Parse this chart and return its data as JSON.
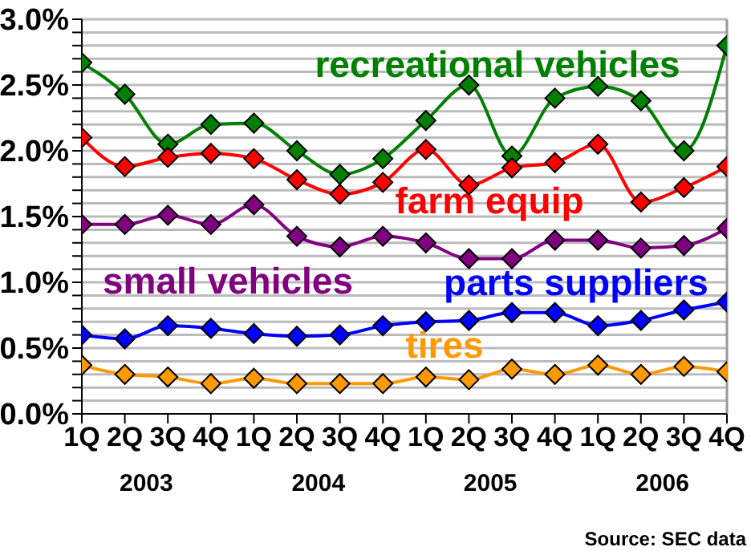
{
  "chart_data": {
    "type": "line",
    "categories": [
      "1Q",
      "2Q",
      "3Q",
      "4Q",
      "1Q",
      "2Q",
      "3Q",
      "4Q",
      "1Q",
      "2Q",
      "3Q",
      "4Q",
      "1Q",
      "2Q",
      "3Q",
      "4Q"
    ],
    "series": [
      {
        "name": "recreational vehicles",
        "color": "#008000",
        "values": [
          2.67,
          2.43,
          2.05,
          2.2,
          2.21,
          2.0,
          1.82,
          1.94,
          2.23,
          2.5,
          1.96,
          2.4,
          2.49,
          2.38,
          2.0,
          2.8
        ]
      },
      {
        "name": "farm equip",
        "color": "#ff0000",
        "values": [
          2.1,
          1.88,
          1.95,
          1.98,
          1.94,
          1.78,
          1.67,
          1.76,
          2.01,
          1.74,
          1.87,
          1.91,
          2.05,
          1.61,
          1.72,
          1.88
        ]
      },
      {
        "name": "small vehicles",
        "color": "#800080",
        "values": [
          1.44,
          1.44,
          1.51,
          1.44,
          1.59,
          1.35,
          1.27,
          1.35,
          1.3,
          1.18,
          1.18,
          1.32,
          1.32,
          1.26,
          1.28,
          1.41
        ]
      },
      {
        "name": "parts suppliers",
        "color": "#0000ff",
        "values": [
          0.6,
          0.57,
          0.67,
          0.65,
          0.61,
          0.59,
          0.6,
          0.67,
          0.7,
          0.71,
          0.77,
          0.77,
          0.67,
          0.71,
          0.79,
          0.85
        ]
      },
      {
        "name": "tires",
        "color": "#ff9900",
        "values": [
          0.37,
          0.3,
          0.28,
          0.23,
          0.27,
          0.23,
          0.23,
          0.23,
          0.28,
          0.26,
          0.34,
          0.3,
          0.37,
          0.3,
          0.36,
          0.32
        ]
      }
    ],
    "ylim": [
      0,
      3
    ],
    "yticks": [
      {
        "value": 0,
        "label": "0.0%"
      },
      {
        "value": 0.1,
        "label": null
      },
      {
        "value": 0.2,
        "label": null
      },
      {
        "value": 0.3,
        "label": null
      },
      {
        "value": 0.4,
        "label": null
      },
      {
        "value": 0.5,
        "label": "0.5%"
      },
      {
        "value": 0.6,
        "label": null
      },
      {
        "value": 0.7,
        "label": null
      },
      {
        "value": 0.8,
        "label": null
      },
      {
        "value": 0.9,
        "label": null
      },
      {
        "value": 1,
        "label": "1.0%"
      },
      {
        "value": 1.1,
        "label": null
      },
      {
        "value": 1.2,
        "label": null
      },
      {
        "value": 1.3,
        "label": null
      },
      {
        "value": 1.4,
        "label": null
      },
      {
        "value": 1.5,
        "label": "1.5%"
      },
      {
        "value": 1.6,
        "label": null
      },
      {
        "value": 1.7,
        "label": null
      },
      {
        "value": 1.8,
        "label": null
      },
      {
        "value": 1.9,
        "label": null
      },
      {
        "value": 2,
        "label": "2.0%"
      },
      {
        "value": 2.1,
        "label": null
      },
      {
        "value": 2.2,
        "label": null
      },
      {
        "value": 2.3,
        "label": null
      },
      {
        "value": 2.4,
        "label": null
      },
      {
        "value": 2.5,
        "label": "2.5%"
      },
      {
        "value": 2.6,
        "label": null
      },
      {
        "value": 2.7,
        "label": null
      },
      {
        "value": 2.8,
        "label": null
      },
      {
        "value": 2.9,
        "label": null
      },
      {
        "value": 3,
        "label": "3.0%"
      }
    ],
    "grid": "y",
    "marker": "diamond",
    "line_style": "solid",
    "annotations": [
      "2003",
      "2004",
      "2005",
      "2006",
      "Source: SEC data"
    ]
  }
}
